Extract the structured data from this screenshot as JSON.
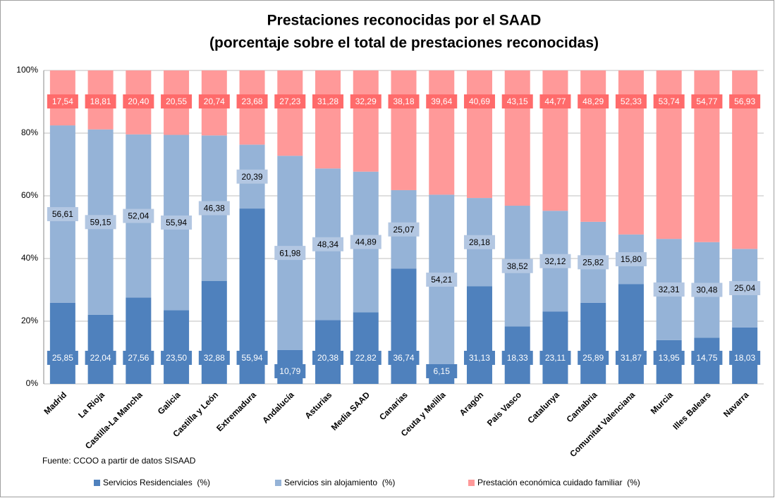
{
  "chart_data": {
    "type": "stacked_bar",
    "title": "Prestaciones reconocidas por el SAAD",
    "subtitle": "(porcentaje sobre el total de prestaciones reconocidas)",
    "source": "Fuente: CCOO a partir de datos SISAAD",
    "categories": [
      "Madrid",
      "La Rioja",
      "Castilla-La Mancha",
      "Galicia",
      "Castilla y León",
      "Extremadura",
      "Andalucía",
      "Asturias",
      "Media SAAD",
      "Canarias",
      "Ceuta y Melilla",
      "Aragón",
      "País Vasco",
      "Catalunya",
      "Cantabria",
      "Comunitat Valenciana",
      "Murcia",
      "Illes Balears",
      "Navarra"
    ],
    "series": [
      {
        "name": "Servicios Residenciales  (%)",
        "color": "#4f81bd",
        "values": [
          25.85,
          22.04,
          27.56,
          23.5,
          32.88,
          55.94,
          10.79,
          20.38,
          22.82,
          36.74,
          6.15,
          31.13,
          18.33,
          23.11,
          25.89,
          31.87,
          13.95,
          14.75,
          18.03
        ],
        "value_labels": [
          "25,85",
          "22,04",
          "27,56",
          "23,50",
          "32,88",
          "55,94",
          "10,79",
          "20,38",
          "22,82",
          "36,74",
          "6,15",
          "31,13",
          "18,33",
          "23,11",
          "25,89",
          "31,87",
          "13,95",
          "14,75",
          "18,03"
        ]
      },
      {
        "name": "Servicios sin alojamiento  (%)",
        "color": "#95b3d7",
        "values": [
          56.61,
          59.15,
          52.04,
          55.94,
          46.38,
          20.39,
          61.98,
          48.34,
          44.89,
          25.07,
          54.21,
          28.18,
          38.52,
          32.12,
          25.82,
          15.8,
          32.31,
          30.48,
          25.04
        ],
        "value_labels": [
          "56,61",
          "59,15",
          "52,04",
          "55,94",
          "46,38",
          "20,39",
          "61,98",
          "48,34",
          "44,89",
          "25,07",
          "54,21",
          "28,18",
          "38,52",
          "32,12",
          "25,82",
          "15,80",
          "32,31",
          "30,48",
          "25,04"
        ]
      },
      {
        "name": "Prestación económica cuidado familiar  (%)",
        "color": "#ff9999",
        "values": [
          17.54,
          18.81,
          20.4,
          20.55,
          20.74,
          23.68,
          27.23,
          31.28,
          32.29,
          38.18,
          39.64,
          40.69,
          43.15,
          44.77,
          48.29,
          52.33,
          53.74,
          54.77,
          56.93
        ],
        "value_labels": [
          "17,54",
          "18,81",
          "20,40",
          "20,55",
          "20,74",
          "23,68",
          "27,23",
          "31,28",
          "32,29",
          "38,18",
          "39,64",
          "40,69",
          "43,15",
          "44,77",
          "48,29",
          "52,33",
          "53,74",
          "54,77",
          "56,93"
        ]
      }
    ],
    "ylim": [
      0,
      100
    ],
    "yticks": [
      {
        "value": 0,
        "label": "0%"
      },
      {
        "value": 20,
        "label": "20%"
      },
      {
        "value": 40,
        "label": "40%"
      },
      {
        "value": 60,
        "label": "60%"
      },
      {
        "value": 80,
        "label": "80%"
      },
      {
        "value": 100,
        "label": "100%"
      }
    ],
    "grid": true,
    "legend": "bottom"
  }
}
